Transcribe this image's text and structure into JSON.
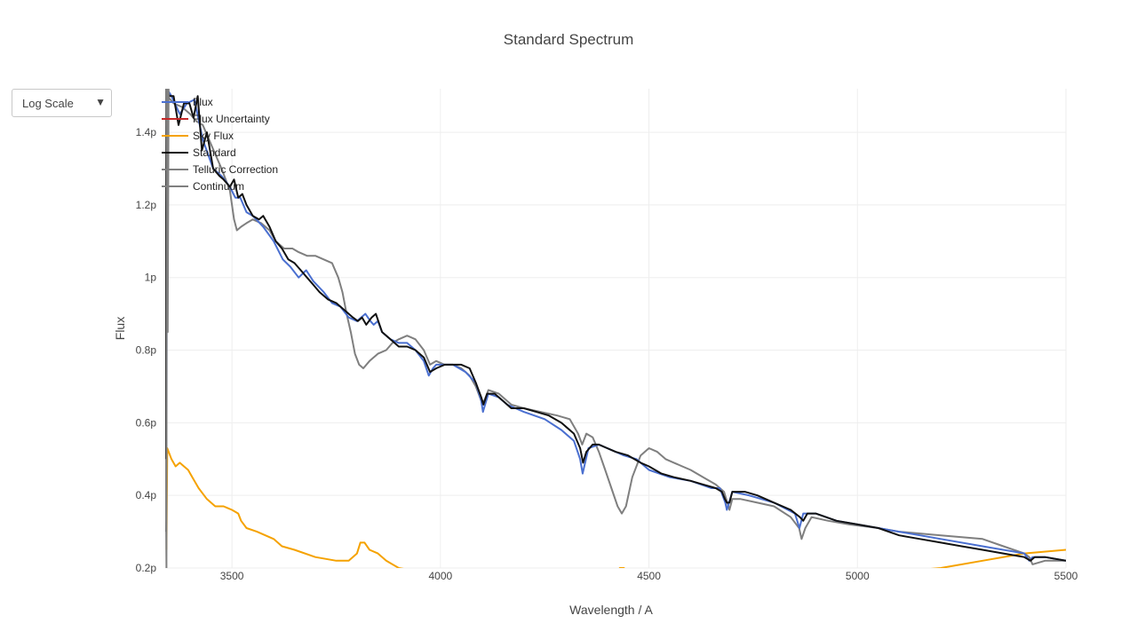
{
  "scale_selector": {
    "label": "Log Scale"
  },
  "chart_data": {
    "type": "line",
    "title": "Standard Spectrum",
    "xlabel": "Wavelength / A",
    "ylabel": "Flux",
    "xlim": [
      3340,
      5500
    ],
    "ylim": [
      0.2,
      1.52
    ],
    "x_ticks": [
      3500,
      4000,
      4500,
      5000,
      5500
    ],
    "x_tick_labels": [
      "3500",
      "4000",
      "4500",
      "5000",
      "5500"
    ],
    "y_ticks": [
      0.2,
      0.4,
      0.6,
      0.8,
      1.0,
      1.2,
      1.4
    ],
    "y_tick_labels": [
      "0.2p",
      "0.4p",
      "0.6p",
      "0.8p",
      "1p",
      "1.2p",
      "1.4p"
    ],
    "grid": true,
    "legend_position": "top-left",
    "series": [
      {
        "name": "Flux",
        "color": "#4a6fd0",
        "x": [
          3343,
          3344,
          3355,
          3375,
          3392,
          3410,
          3430,
          3455,
          3475,
          3495,
          3508,
          3520,
          3535,
          3550,
          3575,
          3600,
          3622,
          3640,
          3660,
          3678,
          3695,
          3720,
          3740,
          3760,
          3780,
          3800,
          3820,
          3832,
          3840,
          3850,
          3860,
          3880,
          3900,
          3920,
          3940,
          3960,
          3972,
          3982,
          3990,
          4000,
          4030,
          4060,
          4085,
          4098,
          4102,
          4115,
          4140,
          4160,
          4180,
          4200,
          4250,
          4290,
          4320,
          4335,
          4341,
          4355,
          4380,
          4420,
          4440,
          4470,
          4500,
          4550,
          4600,
          4650,
          4670,
          4683,
          4687,
          4700,
          4740,
          4800,
          4850,
          4861,
          4870,
          4900,
          4950,
          5000,
          5100,
          5200,
          5300,
          5400,
          5412,
          5420,
          5450,
          5500
        ],
        "y": [
          0.36,
          1.52,
          1.5,
          1.45,
          1.48,
          1.49,
          1.38,
          1.3,
          1.28,
          1.25,
          1.22,
          1.22,
          1.18,
          1.17,
          1.14,
          1.1,
          1.05,
          1.03,
          1.0,
          1.02,
          0.99,
          0.96,
          0.93,
          0.92,
          0.89,
          0.88,
          0.9,
          0.88,
          0.87,
          0.88,
          0.85,
          0.83,
          0.82,
          0.82,
          0.8,
          0.77,
          0.73,
          0.75,
          0.76,
          0.76,
          0.76,
          0.74,
          0.71,
          0.66,
          0.63,
          0.68,
          0.67,
          0.65,
          0.64,
          0.63,
          0.61,
          0.58,
          0.55,
          0.5,
          0.46,
          0.53,
          0.54,
          0.52,
          0.51,
          0.5,
          0.47,
          0.45,
          0.44,
          0.42,
          0.42,
          0.38,
          0.36,
          0.41,
          0.4,
          0.38,
          0.35,
          0.31,
          0.35,
          0.35,
          0.33,
          0.32,
          0.3,
          0.28,
          0.26,
          0.24,
          0.22,
          0.23,
          0.23,
          0.22
        ]
      },
      {
        "name": "Flux Uncertainty",
        "color": "#c62828",
        "x": [],
        "y": []
      },
      {
        "name": "Sky Flux",
        "color": "#f5a200",
        "x": [
          3343,
          3345,
          3355,
          3365,
          3375,
          3385,
          3395,
          3405,
          3420,
          3440,
          3460,
          3480,
          3500,
          3515,
          3522,
          3535,
          3560,
          3580,
          3600,
          3620,
          3650,
          3700,
          3750,
          3780,
          3800,
          3808,
          3818,
          3830,
          3850,
          3870,
          3900,
          3950,
          4000,
          4030,
          4200,
          4250,
          4420,
          4430,
          4440,
          4455,
          5100,
          5200,
          5300,
          5400,
          5500
        ],
        "y": [
          0.25,
          0.53,
          0.5,
          0.48,
          0.49,
          0.48,
          0.47,
          0.45,
          0.42,
          0.39,
          0.37,
          0.37,
          0.36,
          0.35,
          0.33,
          0.31,
          0.3,
          0.29,
          0.28,
          0.26,
          0.25,
          0.23,
          0.22,
          0.22,
          0.24,
          0.27,
          0.27,
          0.25,
          0.24,
          0.22,
          0.2,
          0.19,
          0.18,
          0.17,
          0.15,
          0.16,
          0.17,
          0.2,
          0.2,
          0.18,
          0.19,
          0.2,
          0.22,
          0.24,
          0.25
        ]
      },
      {
        "name": "Standard",
        "color": "#111111",
        "x": [
          3340,
          3343,
          3350,
          3360,
          3372,
          3385,
          3398,
          3408,
          3418,
          3428,
          3440,
          3455,
          3470,
          3480,
          3495,
          3505,
          3515,
          3525,
          3535,
          3550,
          3565,
          3575,
          3590,
          3605,
          3620,
          3635,
          3650,
          3665,
          3680,
          3695,
          3710,
          3730,
          3750,
          3770,
          3790,
          3802,
          3812,
          3822,
          3835,
          3845,
          3860,
          3880,
          3900,
          3920,
          3940,
          3960,
          3975,
          3990,
          4010,
          4030,
          4050,
          4070,
          4085,
          4098,
          4103,
          4112,
          4130,
          4150,
          4170,
          4200,
          4230,
          4260,
          4290,
          4320,
          4335,
          4342,
          4350,
          4365,
          4380,
          4400,
          4420,
          4450,
          4480,
          4500,
          4530,
          4560,
          4600,
          4630,
          4660,
          4675,
          4682,
          4687,
          4693,
          4700,
          4730,
          4760,
          4800,
          4840,
          4862,
          4870,
          4880,
          4900,
          4950,
          5000,
          5050,
          5100,
          5150,
          5200,
          5250,
          5300,
          5350,
          5400,
          5415,
          5425,
          5450,
          5500
        ],
        "y": [
          0.3,
          1.52,
          1.5,
          1.5,
          1.42,
          1.48,
          1.48,
          1.44,
          1.5,
          1.35,
          1.4,
          1.3,
          1.28,
          1.27,
          1.25,
          1.27,
          1.22,
          1.23,
          1.2,
          1.17,
          1.16,
          1.17,
          1.14,
          1.1,
          1.08,
          1.05,
          1.04,
          1.02,
          1.0,
          0.98,
          0.96,
          0.94,
          0.93,
          0.91,
          0.89,
          0.88,
          0.89,
          0.87,
          0.89,
          0.9,
          0.85,
          0.83,
          0.81,
          0.81,
          0.8,
          0.78,
          0.74,
          0.75,
          0.76,
          0.76,
          0.76,
          0.75,
          0.71,
          0.67,
          0.65,
          0.68,
          0.68,
          0.66,
          0.64,
          0.64,
          0.63,
          0.62,
          0.6,
          0.57,
          0.53,
          0.49,
          0.52,
          0.54,
          0.54,
          0.53,
          0.52,
          0.51,
          0.49,
          0.48,
          0.46,
          0.45,
          0.44,
          0.43,
          0.42,
          0.41,
          0.39,
          0.38,
          0.38,
          0.41,
          0.41,
          0.4,
          0.38,
          0.36,
          0.34,
          0.33,
          0.35,
          0.35,
          0.33,
          0.32,
          0.31,
          0.29,
          0.28,
          0.27,
          0.26,
          0.25,
          0.24,
          0.23,
          0.22,
          0.23,
          0.23,
          0.22
        ]
      },
      {
        "name": "Telluric Correction",
        "color": "#808080",
        "x": [
          3341,
          3343,
          3344,
          3346,
          3348
        ],
        "y": [
          0.5,
          0.2,
          1.52,
          0.85,
          1.52
        ]
      },
      {
        "name": "Continuum",
        "color": "#7f7f7f",
        "x": [
          3345,
          3360,
          3380,
          3400,
          3415,
          3430,
          3445,
          3460,
          3475,
          3485,
          3495,
          3505,
          3512,
          3522,
          3535,
          3550,
          3570,
          3590,
          3605,
          3625,
          3645,
          3660,
          3680,
          3700,
          3720,
          3740,
          3755,
          3765,
          3775,
          3785,
          3795,
          3805,
          3815,
          3830,
          3850,
          3870,
          3885,
          3900,
          3920,
          3940,
          3960,
          3975,
          3990,
          4010,
          4030,
          4050,
          4070,
          4085,
          4098,
          4105,
          4115,
          4140,
          4170,
          4200,
          4240,
          4280,
          4310,
          4330,
          4340,
          4350,
          4365,
          4380,
          4395,
          4410,
          4425,
          4435,
          4445,
          4460,
          4480,
          4500,
          4520,
          4540,
          4560,
          4580,
          4600,
          4630,
          4660,
          4680,
          4688,
          4693,
          4700,
          4720,
          4760,
          4800,
          4840,
          4860,
          4866,
          4875,
          4890,
          4930,
          4980,
          5050,
          5100,
          5200,
          5300,
          5350,
          5400,
          5412,
          5420,
          5450,
          5500
        ],
        "y": [
          1.5,
          1.48,
          1.47,
          1.45,
          1.43,
          1.42,
          1.38,
          1.34,
          1.3,
          1.27,
          1.24,
          1.16,
          1.13,
          1.14,
          1.15,
          1.16,
          1.15,
          1.13,
          1.1,
          1.08,
          1.08,
          1.07,
          1.06,
          1.06,
          1.05,
          1.04,
          1.0,
          0.96,
          0.9,
          0.85,
          0.79,
          0.76,
          0.75,
          0.77,
          0.79,
          0.8,
          0.82,
          0.83,
          0.84,
          0.83,
          0.8,
          0.76,
          0.77,
          0.76,
          0.76,
          0.75,
          0.73,
          0.7,
          0.66,
          0.66,
          0.69,
          0.68,
          0.65,
          0.64,
          0.63,
          0.62,
          0.61,
          0.57,
          0.54,
          0.57,
          0.56,
          0.52,
          0.47,
          0.42,
          0.37,
          0.35,
          0.37,
          0.45,
          0.51,
          0.53,
          0.52,
          0.5,
          0.49,
          0.48,
          0.47,
          0.45,
          0.43,
          0.41,
          0.38,
          0.36,
          0.39,
          0.39,
          0.38,
          0.37,
          0.34,
          0.31,
          0.28,
          0.31,
          0.34,
          0.33,
          0.32,
          0.31,
          0.3,
          0.29,
          0.28,
          0.26,
          0.24,
          0.23,
          0.21,
          0.22,
          0.22
        ]
      }
    ]
  }
}
